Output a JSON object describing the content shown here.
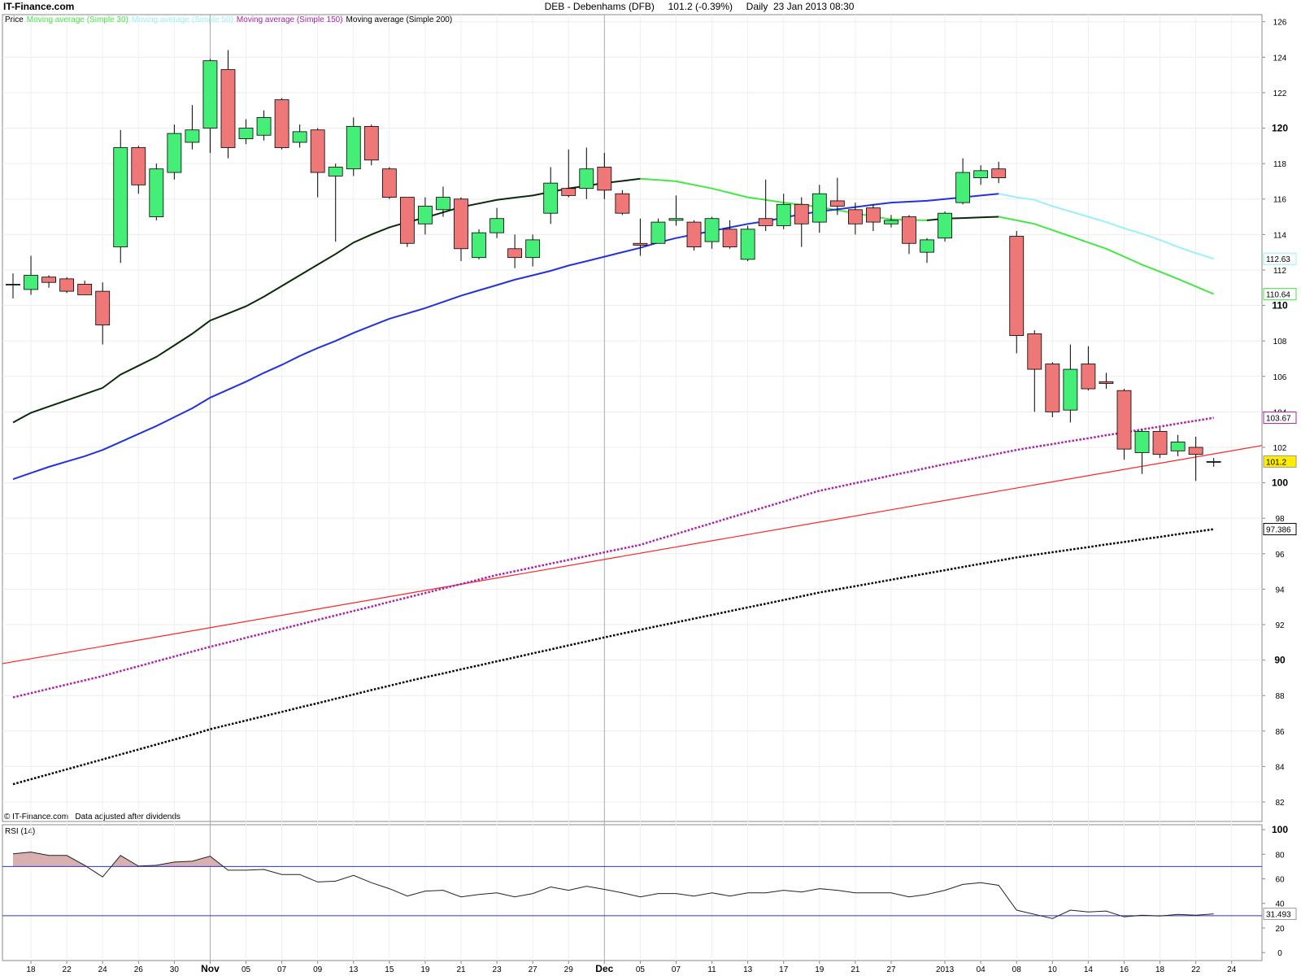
{
  "chart_data": {
    "type": "candlestick",
    "site": "IT-Finance.com",
    "title": "DEB - Debenhams (DFB)     101.2 (-0.39%)     Daily  23 Jan 2013 08:30",
    "price_label": "Price",
    "footer": "© IT-Finance.com   Data adjusted after dividends",
    "categories": [
      null,
      "18",
      null,
      "22",
      null,
      "24",
      null,
      "26",
      null,
      "30",
      null,
      "Nov",
      null,
      "05",
      null,
      "07",
      null,
      "09",
      null,
      "13",
      null,
      "15",
      null,
      "19",
      null,
      "21",
      null,
      "23",
      null,
      "27",
      null,
      "29",
      null,
      "Dec",
      null,
      "05",
      null,
      "07",
      null,
      "11",
      null,
      "13",
      null,
      "17",
      null,
      "19",
      null,
      "21",
      null,
      "27",
      null,
      null,
      "2013",
      null,
      "04",
      null,
      "08",
      null,
      "10",
      null,
      "14",
      null,
      "16",
      null,
      "18",
      null,
      "22",
      null,
      "24"
    ],
    "open": [
      111.2,
      110.9,
      111.6,
      111.5,
      111.2,
      110.8,
      113.3,
      118.9,
      115.0,
      117.5,
      119.2,
      120.0,
      123.3,
      119.4,
      119.6,
      121.6,
      119.2,
      119.9,
      117.3,
      117.7,
      120.1,
      117.7,
      116.1,
      114.6,
      115.4,
      116.0,
      112.7,
      114.1,
      113.2,
      112.7,
      115.2,
      116.6,
      116.6,
      117.8,
      116.3,
      113.5,
      113.5,
      114.8,
      114.7,
      113.6,
      114.3,
      112.6,
      114.9,
      114.5,
      115.7,
      114.7,
      115.9,
      115.4,
      115.5,
      114.6,
      115.0,
      113.0,
      113.8,
      115.8,
      117.2,
      117.7,
      113.9,
      108.4,
      106.7,
      104.1,
      106.7,
      105.7,
      105.2,
      101.7,
      102.9,
      101.8,
      102.0,
      101.2,
      null
    ],
    "high": [
      111.8,
      112.8,
      111.7,
      111.6,
      111.4,
      111.3,
      119.9,
      119.0,
      118.0,
      120.2,
      121.3,
      123.9,
      124.4,
      120.5,
      121.0,
      121.7,
      120.2,
      120.0,
      118.0,
      120.6,
      120.2,
      117.8,
      116.1,
      116.1,
      116.7,
      116.1,
      114.3,
      115.5,
      114.0,
      114.0,
      117.8,
      118.8,
      118.9,
      118.6,
      116.5,
      114.9,
      114.9,
      116.2,
      114.8,
      115.0,
      114.8,
      114.5,
      117.1,
      116.3,
      116.1,
      116.8,
      117.2,
      115.8,
      115.7,
      115.1,
      115.1,
      113.8,
      115.3,
      118.3,
      117.9,
      118.1,
      114.2,
      108.6,
      106.8,
      107.8,
      107.7,
      106.2,
      105.3,
      103.0,
      103.1,
      102.7,
      102.6,
      101.4,
      null
    ],
    "low": [
      110.4,
      110.6,
      111.0,
      110.7,
      110.6,
      107.8,
      112.4,
      116.3,
      114.8,
      117.1,
      118.8,
      118.6,
      118.3,
      119.1,
      119.3,
      118.8,
      118.9,
      116.1,
      113.6,
      117.3,
      117.9,
      116.0,
      113.3,
      114.0,
      115.0,
      112.5,
      112.6,
      113.8,
      112.1,
      112.2,
      114.6,
      116.1,
      116.0,
      116.0,
      115.1,
      112.8,
      113.5,
      114.5,
      113.1,
      113.2,
      113.2,
      112.5,
      114.2,
      114.3,
      113.3,
      114.1,
      115.1,
      114.0,
      114.2,
      114.4,
      112.9,
      112.4,
      113.6,
      115.7,
      116.8,
      116.9,
      107.3,
      104.0,
      103.7,
      103.4,
      105.2,
      105.3,
      101.3,
      100.5,
      101.4,
      101.5,
      100.1,
      100.9,
      null
    ],
    "close": [
      111.2,
      111.7,
      111.3,
      110.8,
      110.6,
      108.9,
      118.9,
      116.8,
      117.7,
      119.7,
      119.9,
      123.8,
      118.9,
      120.0,
      120.6,
      118.9,
      119.8,
      117.5,
      117.8,
      120.1,
      118.2,
      116.1,
      113.5,
      115.6,
      116.1,
      113.2,
      114.1,
      114.9,
      112.7,
      113.7,
      116.9,
      116.2,
      117.7,
      116.5,
      115.2,
      113.4,
      114.7,
      114.9,
      113.3,
      114.9,
      113.3,
      114.3,
      114.5,
      115.7,
      114.6,
      116.3,
      115.6,
      114.6,
      114.7,
      114.8,
      113.5,
      113.7,
      115.2,
      117.5,
      117.6,
      117.2,
      108.3,
      106.4,
      104.0,
      106.4,
      105.3,
      105.6,
      101.9,
      102.9,
      101.6,
      102.3,
      101.6,
      101.2,
      null
    ],
    "up_color": "#44ee77",
    "down_color": "#ee7777",
    "last_color": "#ffee00",
    "series": [
      {
        "name": "Moving average (Simple 30)",
        "color": "#44e844",
        "style": "solid",
        "values": [
          null,
          null,
          null,
          null,
          null,
          null,
          null,
          null,
          null,
          null,
          null,
          null,
          null,
          null,
          null,
          null,
          null,
          null,
          null,
          null,
          null,
          null,
          null,
          null,
          null,
          null,
          null,
          null,
          null,
          null,
          null,
          null,
          null,
          null,
          null,
          117.15,
          117.08,
          117.0,
          116.8,
          116.6,
          116.35,
          116.1,
          115.95,
          115.8,
          115.68,
          115.55,
          115.38,
          115.2,
          115.02,
          114.85,
          114.82,
          114.8,
          null,
          null,
          null,
          115.0,
          114.8,
          114.6,
          114.25,
          113.9,
          113.55,
          113.2,
          112.75,
          112.3,
          111.9,
          111.5,
          111.07,
          110.64,
          null
        ]
      },
      {
        "color": "#0a2a0a",
        "style": "solid",
        "values": [
          103.4,
          103.95,
          104.3,
          104.65,
          105.0,
          105.35,
          106.1,
          106.6,
          107.1,
          107.75,
          108.4,
          109.15,
          109.55,
          109.95,
          110.5,
          111.1,
          111.7,
          112.3,
          112.9,
          113.55,
          114.0,
          114.4,
          114.7,
          114.95,
          115.25,
          115.55,
          115.75,
          115.95,
          116.08,
          116.2,
          116.4,
          116.6,
          116.75,
          116.9,
          117.02,
          117.15,
          null,
          null,
          null,
          null,
          null,
          null,
          null,
          null,
          null,
          null,
          null,
          null,
          null,
          null,
          null,
          114.8,
          114.9,
          114.93,
          114.97,
          115.0,
          null,
          null,
          null,
          null,
          null,
          null,
          null,
          null,
          null,
          null,
          null,
          null,
          null
        ]
      },
      {
        "name": "Moving average (Simple 50)",
        "color": "#99f0f8",
        "style": "solid",
        "values": [
          null,
          null,
          null,
          null,
          null,
          null,
          null,
          null,
          null,
          null,
          null,
          null,
          null,
          null,
          null,
          null,
          null,
          null,
          null,
          null,
          null,
          null,
          null,
          null,
          null,
          null,
          null,
          null,
          null,
          null,
          null,
          null,
          null,
          null,
          null,
          null,
          null,
          null,
          null,
          null,
          null,
          null,
          null,
          null,
          null,
          null,
          null,
          null,
          null,
          null,
          null,
          null,
          null,
          null,
          null,
          116.3,
          116.1,
          115.95,
          115.6,
          115.3,
          115.0,
          114.7,
          114.35,
          114.05,
          113.7,
          113.3,
          112.95,
          112.63,
          null
        ]
      },
      {
        "color": "#2233dd",
        "style": "solid",
        "values": [
          100.2,
          100.55,
          100.9,
          101.2,
          101.5,
          101.85,
          102.3,
          102.75,
          103.2,
          103.7,
          104.2,
          104.8,
          105.25,
          105.7,
          106.2,
          106.65,
          107.15,
          107.6,
          108.0,
          108.45,
          108.85,
          109.25,
          109.55,
          109.85,
          110.2,
          110.55,
          110.85,
          111.15,
          111.45,
          111.7,
          111.95,
          112.25,
          112.5,
          112.75,
          113.0,
          113.25,
          113.55,
          113.8,
          114.0,
          114.2,
          114.4,
          114.6,
          114.75,
          114.95,
          115.15,
          115.3,
          115.42,
          115.55,
          115.68,
          115.8,
          115.85,
          115.9,
          116.0,
          116.1,
          116.2,
          116.3,
          null,
          null,
          null,
          null,
          null,
          null,
          null,
          null,
          null,
          null,
          null,
          null,
          null
        ]
      },
      {
        "name": "Moving average (Simple 150)",
        "color": "#aa22aa",
        "style": "dotted",
        "values": [
          87.9,
          88.14,
          88.38,
          88.62,
          88.86,
          89.1,
          89.38,
          89.65,
          89.93,
          90.2,
          90.48,
          90.75,
          91.0,
          91.26,
          91.51,
          91.76,
          92.01,
          92.27,
          92.52,
          92.77,
          93.02,
          93.28,
          93.53,
          93.78,
          94.04,
          94.29,
          94.54,
          94.8,
          95.01,
          95.23,
          95.44,
          95.65,
          95.86,
          96.08,
          96.29,
          96.5,
          96.81,
          97.11,
          97.42,
          97.72,
          98.03,
          98.33,
          98.64,
          98.94,
          99.25,
          99.55,
          99.76,
          99.98,
          100.19,
          100.41,
          100.62,
          100.84,
          101.05,
          101.25,
          101.45,
          101.65,
          101.85,
          102.02,
          102.18,
          102.35,
          102.51,
          102.68,
          102.84,
          103.01,
          103.17,
          103.34,
          103.5,
          103.67,
          null
        ]
      },
      {
        "name": "Moving average (Simple 200)",
        "color": "#000000",
        "style": "dotted",
        "values": [
          83.0,
          83.28,
          83.56,
          83.84,
          84.12,
          84.4,
          84.68,
          84.96,
          85.24,
          85.52,
          85.8,
          86.1,
          86.35,
          86.59,
          86.84,
          87.08,
          87.33,
          87.57,
          87.82,
          88.06,
          88.31,
          88.55,
          88.8,
          89.03,
          89.25,
          89.48,
          89.7,
          89.93,
          90.15,
          90.38,
          90.6,
          90.83,
          91.05,
          91.28,
          91.5,
          91.71,
          91.92,
          92.13,
          92.34,
          92.55,
          92.76,
          92.97,
          93.18,
          93.39,
          93.6,
          93.81,
          93.99,
          94.17,
          94.35,
          94.53,
          94.71,
          94.89,
          95.07,
          95.25,
          95.43,
          95.61,
          95.79,
          95.94,
          96.08,
          96.23,
          96.37,
          96.52,
          96.66,
          96.81,
          96.95,
          97.1,
          97.24,
          97.386,
          null
        ]
      }
    ],
    "trendline": {
      "color": "#ff2222",
      "values": [
        89.8,
        102.1
      ]
    },
    "ylim": [
      80.9,
      126.4
    ],
    "yticks": [
      82,
      84,
      86,
      88,
      90,
      92,
      94,
      96,
      98,
      100,
      102,
      104,
      106,
      108,
      110,
      112,
      114,
      116,
      118,
      120,
      122,
      124,
      126
    ],
    "grid": true,
    "rsi": {
      "label": "RSI (14)",
      "color": "#222222",
      "fill_color": "#d8b0b0",
      "level_color": "#3333cc",
      "levels": [
        70,
        30
      ],
      "ylim": [
        -6.5,
        104
      ],
      "yticks": [
        0,
        20,
        40,
        60,
        80,
        100
      ],
      "values": [
        80.4,
        81.8,
        79,
        79,
        71,
        61.5,
        79,
        70.3,
        71,
        73.6,
        74.3,
        78.4,
        67,
        67,
        67.6,
        63.5,
        63.5,
        57.4,
        58.1,
        62.8,
        56.8,
        52,
        46,
        50,
        50.7,
        45.3,
        47.3,
        48.6,
        45.3,
        48,
        53.4,
        50.7,
        54,
        51.4,
        48.6,
        45.3,
        48,
        48,
        46,
        48.6,
        46,
        48.6,
        48.6,
        50.7,
        49.3,
        52,
        50.7,
        48.6,
        48.6,
        48.6,
        45.3,
        47.3,
        50.7,
        55.4,
        56.8,
        54.7,
        34.5,
        31.1,
        27.7,
        34.5,
        33.1,
        33.8,
        29,
        30.4,
        29.7,
        31.1,
        30.4,
        31.493,
        null
      ]
    }
  }
}
